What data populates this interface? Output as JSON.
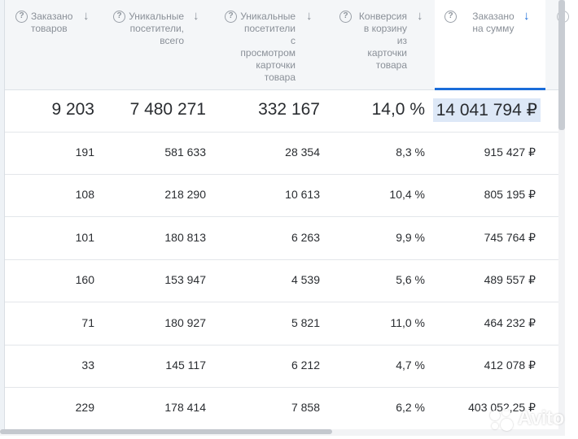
{
  "columns": [
    {
      "label": "Заказано\nтоваров"
    },
    {
      "label": "Уникальные\nпосетители,\nвсего"
    },
    {
      "label": "Уникальные\nпосетители\nс\nпросмотром\nкарточки\nтовара"
    },
    {
      "label": "Конверсия\nв корзину\nиз\nкарточки\nтовара"
    },
    {
      "label": "Заказано\nна сумму"
    }
  ],
  "totals": [
    "9 203",
    "7 480 271",
    "332 167",
    "14,0 %",
    "14 041 794 ₽"
  ],
  "rows": [
    [
      "191",
      "581 633",
      "28 354",
      "8,3 %",
      "915 427 ₽"
    ],
    [
      "108",
      "218 290",
      "10 613",
      "10,4 %",
      "805 195 ₽"
    ],
    [
      "101",
      "180 813",
      "6 263",
      "9,9 %",
      "745 764 ₽"
    ],
    [
      "160",
      "153 947",
      "4 539",
      "5,6 %",
      "489 557 ₽"
    ],
    [
      "71",
      "180 927",
      "5 821",
      "11,0 %",
      "464 232 ₽"
    ],
    [
      "33",
      "145 117",
      "6 212",
      "4,7 %",
      "412 078 ₽"
    ],
    [
      "229",
      "178 414",
      "7 858",
      "6,2 %",
      "403 052,25 ₽"
    ]
  ],
  "icons": {
    "help": "?",
    "sort": "↓"
  },
  "watermark": "Avito",
  "colors": {
    "accent": "#1a6cd9",
    "header_bg": "#f4f6f8",
    "highlight": "#dde8f7"
  }
}
